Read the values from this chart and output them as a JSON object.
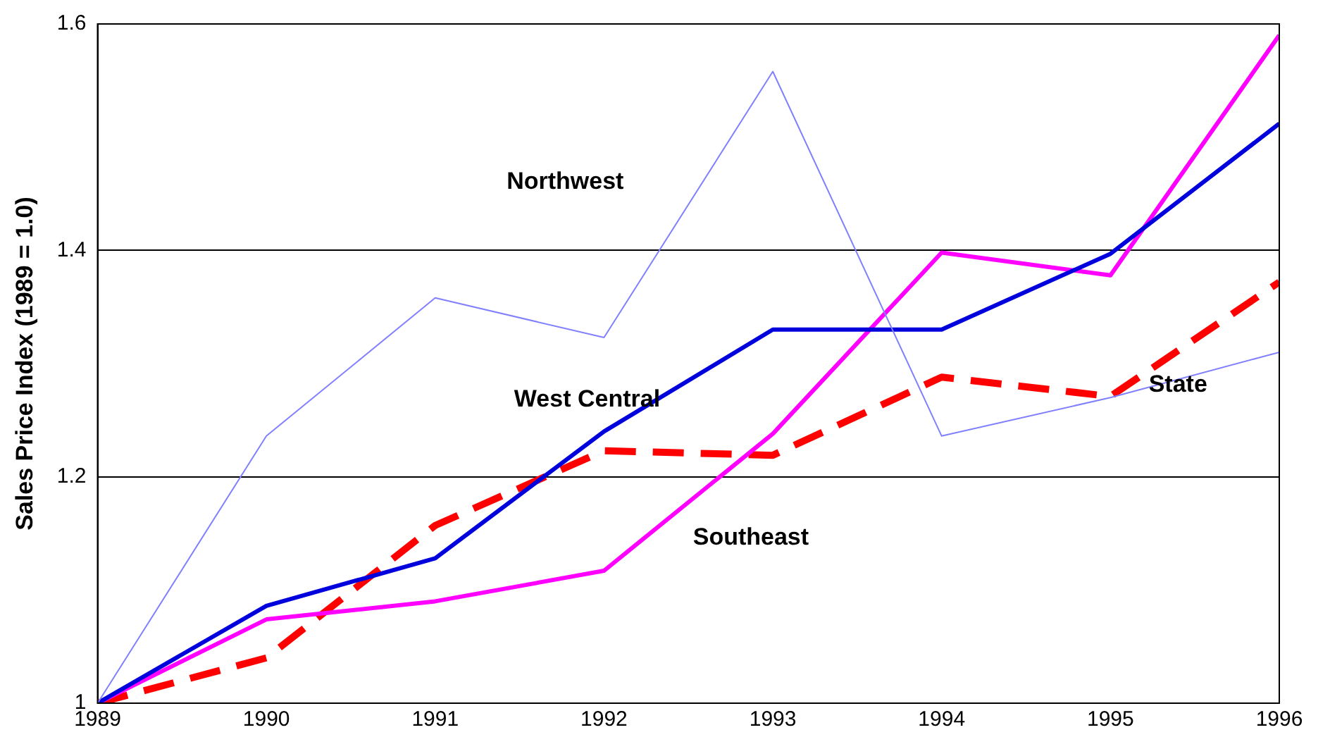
{
  "chart_data": {
    "type": "line",
    "ylabel": "Sales Price Index (1989 = 1.0)",
    "x": [
      1989,
      1990,
      1991,
      1992,
      1993,
      1994,
      1995,
      1996
    ],
    "xlim": [
      1989,
      1996
    ],
    "xticks": [
      1989,
      1990,
      1991,
      1992,
      1993,
      1994,
      1995,
      1996
    ],
    "ylim": [
      1,
      1.6
    ],
    "yticks": [
      1,
      1.2,
      1.4,
      1.6
    ],
    "grid": "y",
    "legend": false,
    "marker": "none",
    "series": [
      {
        "name": "Northwest",
        "color": "#8080ff",
        "values": [
          1.0,
          1.236,
          1.358,
          1.323,
          1.558,
          1.236,
          1.27,
          1.31
        ]
      },
      {
        "name": "West Central",
        "color": "#0000dd",
        "values": [
          1.0,
          1.086,
          1.128,
          1.24,
          1.33,
          1.33,
          1.397,
          1.512
        ]
      },
      {
        "name": "Southeast",
        "color": "#ff00ff",
        "values": [
          1.0,
          1.074,
          1.09,
          1.117,
          1.238,
          1.398,
          1.378,
          1.59
        ]
      },
      {
        "name": "State",
        "color": "#ff0000",
        "line_style": "dashed",
        "values": [
          1.0,
          1.04,
          1.157,
          1.223,
          1.219,
          1.288,
          1.271,
          1.372
        ]
      }
    ]
  }
}
